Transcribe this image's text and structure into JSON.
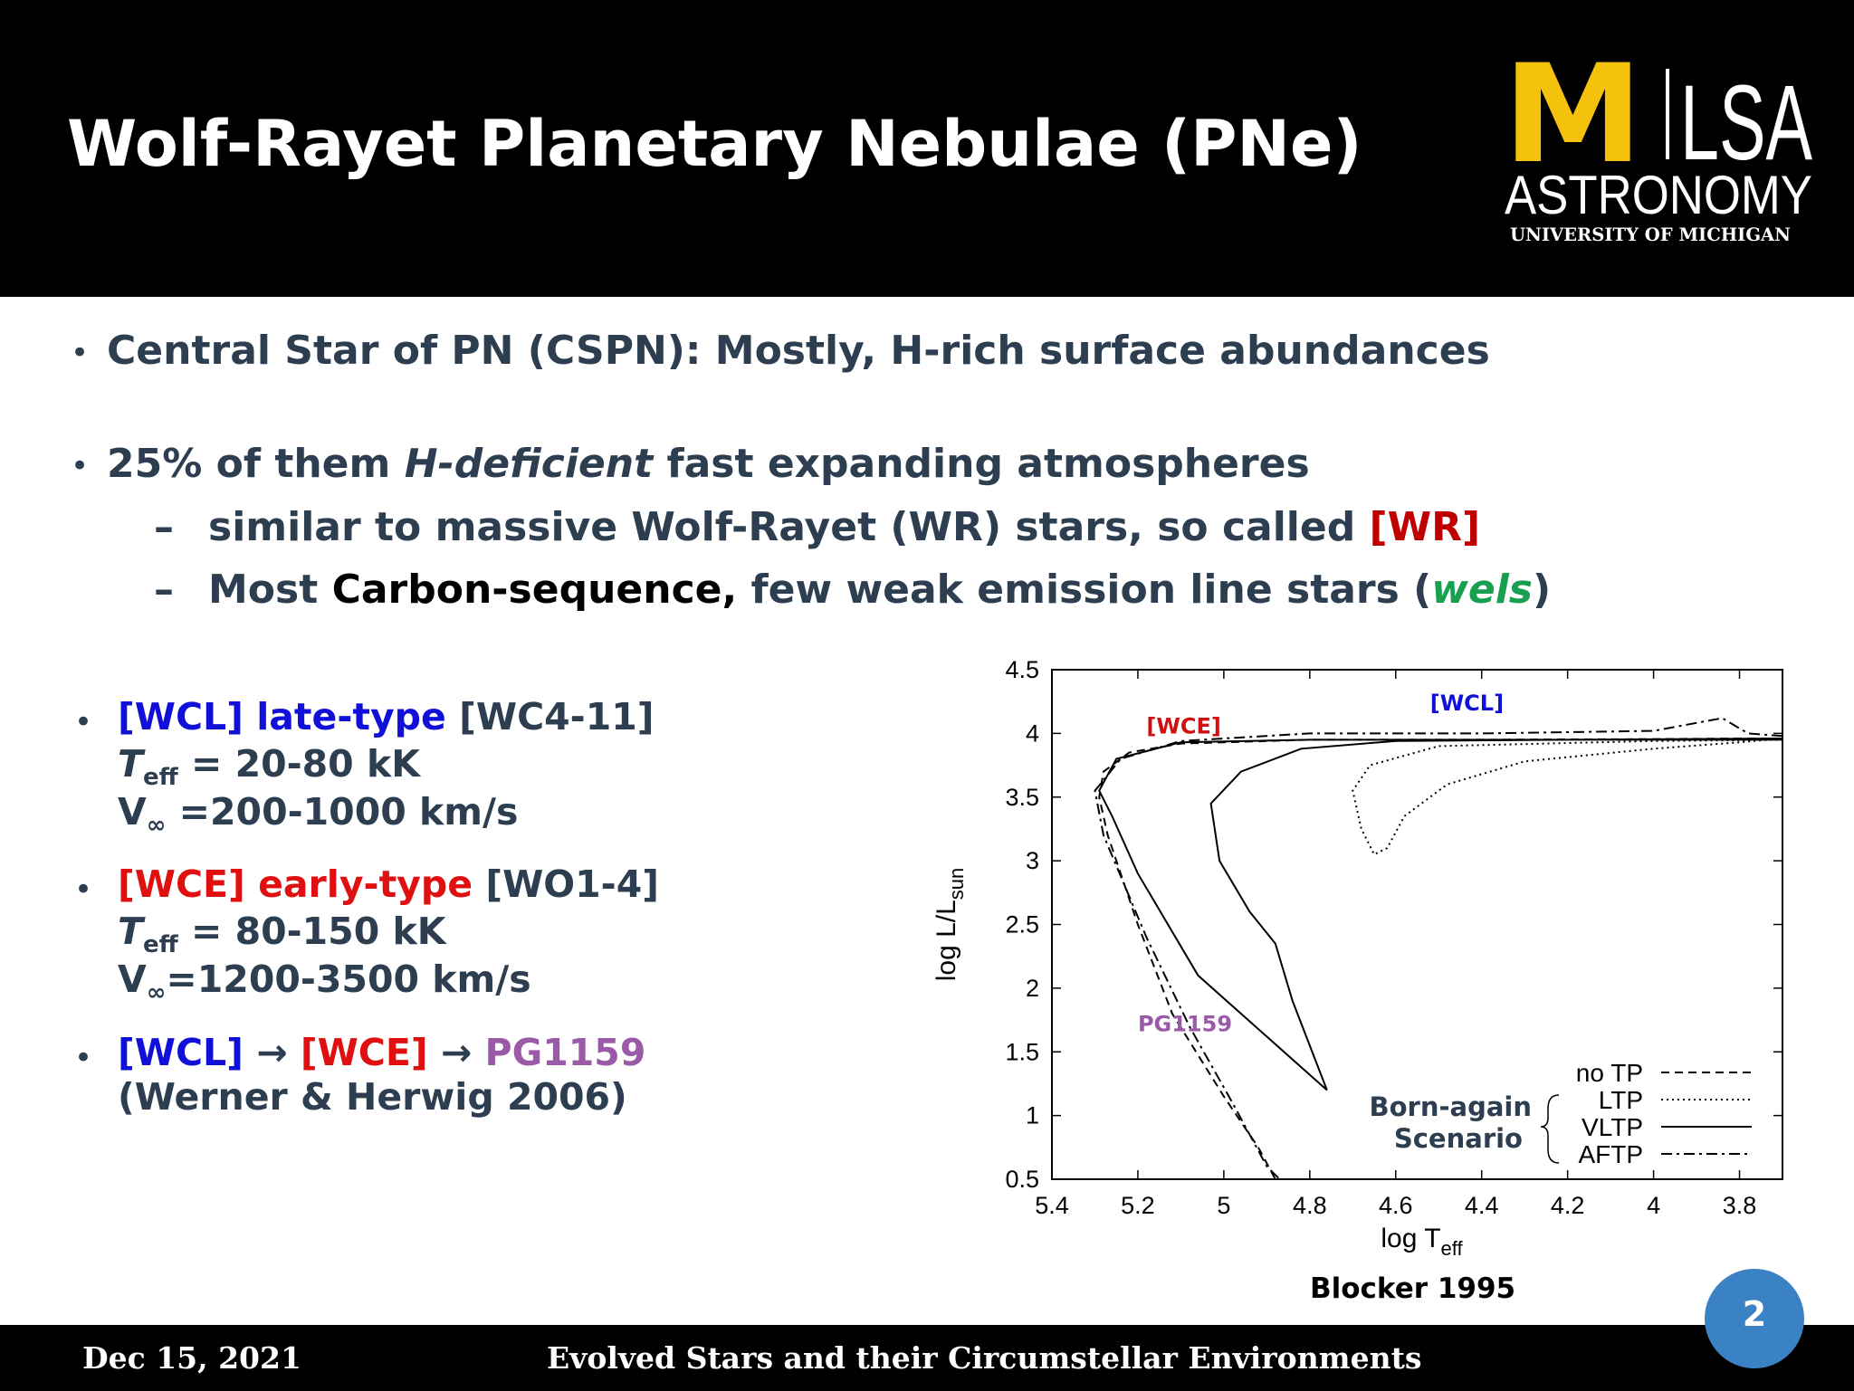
{
  "slide": {
    "title": "Wolf-Rayet Planetary Nebulae (PNe)",
    "logo": {
      "m": "M",
      "lsa": "LSA",
      "dept": "ASTRONOMY",
      "univ": "UNIVERSITY OF MICHIGAN",
      "gold": "#f4c20d"
    },
    "bullet1": "Central Star of PN (CSPN): Mostly, H-rich surface abundances",
    "bullet2": {
      "a": "25% of them ",
      "b": "H-deficient",
      "c": " fast expanding atmospheres"
    },
    "sub1": {
      "a": "similar to massive Wolf-Rayet (WR) stars, so called ",
      "b": "[WR]"
    },
    "sub2": {
      "a": "Most ",
      "b": "Carbon-sequence,",
      "c": " few weak emission line stars (",
      "d": "wels",
      "e": ")"
    },
    "dash": "–",
    "bullet_char": "•",
    "wcl": {
      "tag": "[WCL]",
      "type": " late-type",
      "class": " [WC4-11]",
      "T": "T",
      "eff": "eff",
      "teff_val": " = 20-80 kK",
      "V": "V",
      "inf": "∞",
      "vinf_val": " =200-1000 km/s"
    },
    "wce": {
      "tag": "[WCE]",
      "type": " early-type",
      "class": " [WO1-4]",
      "T": "T",
      "eff": "eff",
      "teff_val": "  = 80-150 kK",
      "V": "V",
      "inf": "∞",
      "vinf_val": "=1200-3500 km/s"
    },
    "seq": {
      "a": "[WCL]",
      "arrow1": "  → ",
      "b": "[WCE]",
      "arrow2": " → ",
      "c": "PG1159",
      "ref": "(Werner & Herwig 2006)"
    },
    "caption": "Blocker 1995",
    "footer": {
      "date": "Dec 15, 2021",
      "course": "Evolved Stars and their Circumstellar Environments",
      "page": "2"
    },
    "colors": {
      "text": "#2c3e50",
      "blue": "#1010d8",
      "red": "#e01010",
      "purple": "#9a5aa8",
      "green": "#18a050",
      "badge": "#3b82c4"
    }
  },
  "chart_data": {
    "type": "line",
    "xlabel": "log T",
    "xlabel_sub": "eff",
    "ylabel": "log L/L",
    "ylabel_sub": "sun",
    "xlim": [
      5.4,
      3.7
    ],
    "ylim": [
      0.5,
      4.5
    ],
    "xticks": [
      "5.4",
      "5.2",
      "5",
      "4.8",
      "4.6",
      "4.4",
      "4.2",
      "4",
      "3.8"
    ],
    "yticks": [
      "0.5",
      "1",
      "1.5",
      "2",
      "2.5",
      "3",
      "3.5",
      "4",
      "4.5"
    ],
    "annotations": [
      {
        "text": "[WCE]",
        "x": 5.18,
        "y": 4.0,
        "color": "#d01010"
      },
      {
        "text": "[WCL]",
        "x": 4.52,
        "y": 4.18,
        "color": "#1010d8"
      },
      {
        "text": "PG1159",
        "x": 5.2,
        "y": 1.66,
        "color": "#9a5aa8"
      }
    ],
    "legend_group_label": [
      "Born-again",
      "Scenario"
    ],
    "legend": [
      "no TP",
      "LTP",
      "VLTP",
      "AFTP"
    ],
    "legend_placement": "bottom-right",
    "series": [
      {
        "name": "no TP",
        "style": "dashed",
        "points": [
          [
            3.7,
            3.96
          ],
          [
            3.8,
            3.96
          ],
          [
            4.0,
            3.955
          ],
          [
            4.4,
            3.95
          ],
          [
            4.8,
            3.95
          ],
          [
            5.1,
            3.92
          ],
          [
            5.22,
            3.85
          ],
          [
            5.28,
            3.7
          ],
          [
            5.29,
            3.5
          ],
          [
            5.27,
            3.2
          ],
          [
            5.2,
            2.5
          ],
          [
            5.12,
            1.8
          ],
          [
            5.0,
            1.15
          ],
          [
            4.92,
            0.75
          ],
          [
            4.88,
            0.5
          ]
        ]
      },
      {
        "name": "LTP",
        "style": "dotted",
        "points": [
          [
            3.7,
            3.96
          ],
          [
            3.8,
            3.93
          ],
          [
            4.0,
            3.88
          ],
          [
            4.3,
            3.78
          ],
          [
            4.48,
            3.6
          ],
          [
            4.58,
            3.35
          ],
          [
            4.62,
            3.1
          ],
          [
            4.65,
            3.05
          ],
          [
            4.68,
            3.25
          ],
          [
            4.7,
            3.55
          ],
          [
            4.66,
            3.75
          ],
          [
            4.5,
            3.9
          ],
          [
            4.0,
            3.94
          ],
          [
            3.7,
            3.95
          ]
        ]
      },
      {
        "name": "VLTP",
        "style": "solid",
        "points": [
          [
            3.7,
            3.95
          ],
          [
            4.2,
            3.95
          ],
          [
            4.6,
            3.94
          ],
          [
            4.82,
            3.88
          ],
          [
            4.96,
            3.7
          ],
          [
            5.03,
            3.45
          ],
          [
            5.01,
            3.0
          ],
          [
            4.94,
            2.6
          ],
          [
            4.88,
            2.35
          ],
          [
            4.84,
            1.9
          ],
          [
            4.76,
            1.2
          ],
          [
            5.06,
            2.1
          ],
          [
            5.2,
            2.9
          ],
          [
            5.26,
            3.35
          ],
          [
            5.29,
            3.55
          ],
          [
            5.25,
            3.8
          ],
          [
            5.1,
            3.93
          ],
          [
            4.8,
            3.95
          ],
          [
            4.2,
            3.95
          ],
          [
            3.7,
            3.96
          ]
        ]
      },
      {
        "name": "AFTP",
        "style": "dashdot",
        "points": [
          [
            3.7,
            3.98
          ],
          [
            3.78,
            4.0
          ],
          [
            3.84,
            4.12
          ],
          [
            4.0,
            4.02
          ],
          [
            4.4,
            4.0
          ],
          [
            4.8,
            4.0
          ],
          [
            5.1,
            3.94
          ],
          [
            5.24,
            3.8
          ],
          [
            5.3,
            3.55
          ],
          [
            5.28,
            3.2
          ],
          [
            5.18,
            2.4
          ],
          [
            5.08,
            1.7
          ],
          [
            4.98,
            1.1
          ],
          [
            4.9,
            0.6
          ],
          [
            4.87,
            0.5
          ]
        ]
      }
    ]
  }
}
